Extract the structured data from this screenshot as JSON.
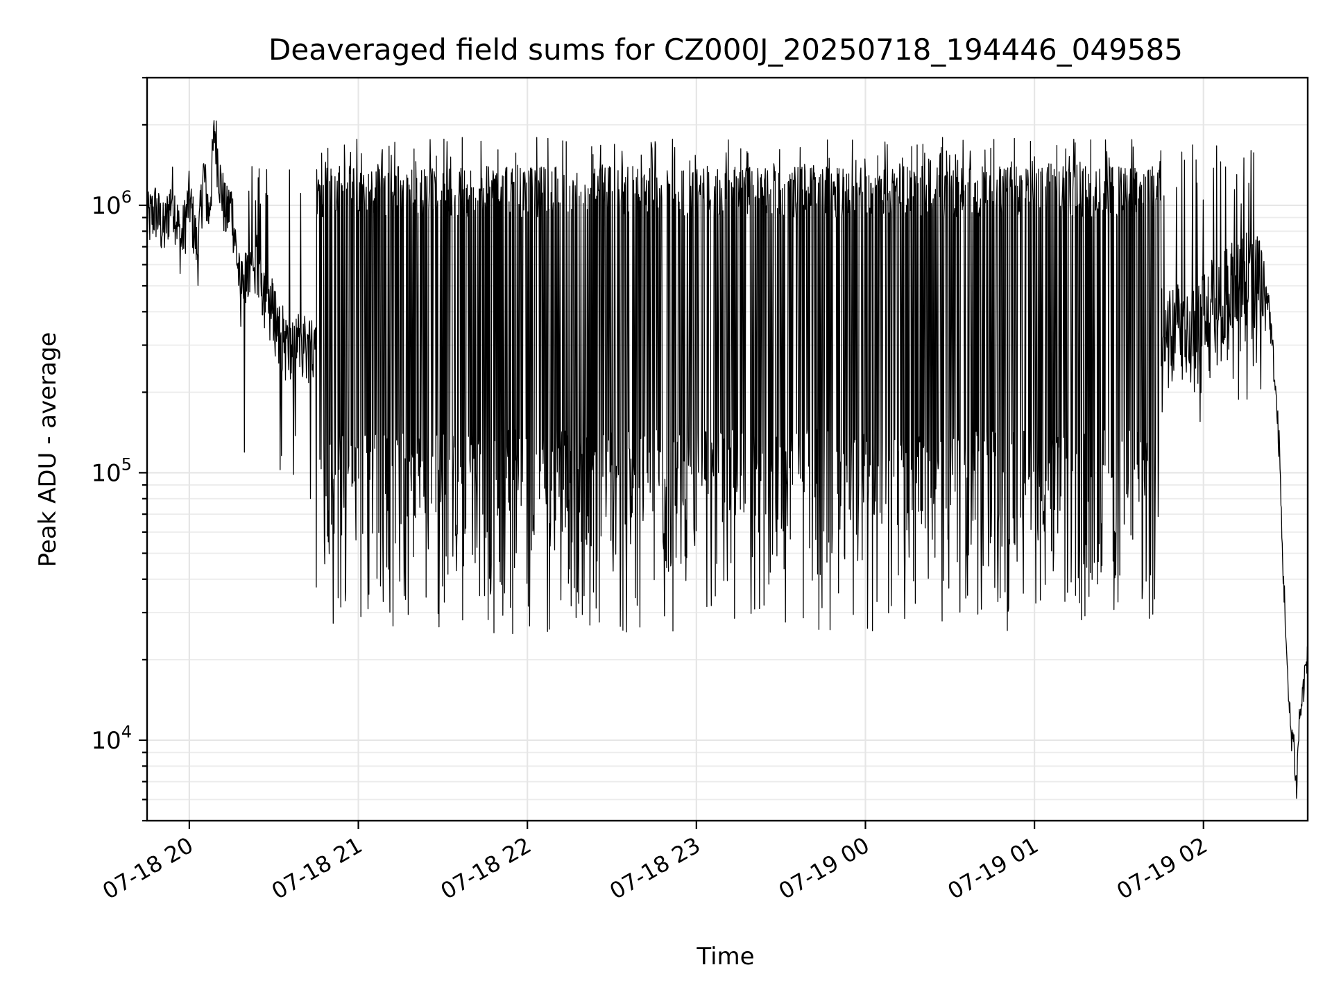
{
  "chart_data": {
    "type": "line",
    "title": "Deaveraged field sums for CZ000J_20250718_194446_049585",
    "xlabel": "Time",
    "ylabel": "Peak ADU - average",
    "yscale": "log",
    "ylim": [
      5000,
      3000000
    ],
    "xlim": [
      "2025-07-18 19:45",
      "2025-07-19 02:37"
    ],
    "grid": true,
    "x_ticks": [
      {
        "value": "2025-07-18 20:00",
        "label": "07-18 20"
      },
      {
        "value": "2025-07-18 21:00",
        "label": "07-18 21"
      },
      {
        "value": "2025-07-18 22:00",
        "label": "07-18 22"
      },
      {
        "value": "2025-07-18 23:00",
        "label": "07-18 23"
      },
      {
        "value": "2025-07-19 00:00",
        "label": "07-19 00"
      },
      {
        "value": "2025-07-19 01:00",
        "label": "07-19 01"
      },
      {
        "value": "2025-07-19 02:00",
        "label": "07-19 02"
      }
    ],
    "y_ticks": [
      {
        "value": 10000,
        "base": "10",
        "exp": "4"
      },
      {
        "value": 100000,
        "base": "10",
        "exp": "5"
      },
      {
        "value": 1000000,
        "base": "10",
        "exp": "6"
      }
    ],
    "series": [
      {
        "color": "#000000",
        "points": [
          [
            "2025-07-18 19:45",
            850000
          ],
          [
            "2025-07-18 19:48",
            950000
          ],
          [
            "2025-07-18 19:51",
            780000
          ],
          [
            "2025-07-18 19:54",
            1100000
          ],
          [
            "2025-07-18 19:57",
            700000
          ],
          [
            "2025-07-18 20:00",
            1050000
          ],
          [
            "2025-07-18 20:03",
            650000
          ],
          [
            "2025-07-18 20:05",
            1300000
          ],
          [
            "2025-07-18 20:07",
            900000
          ],
          [
            "2025-07-18 20:09",
            1900000
          ],
          [
            "2025-07-18 20:11",
            1200000
          ],
          [
            "2025-07-18 20:13",
            900000
          ],
          [
            "2025-07-18 20:15",
            1000000
          ],
          [
            "2025-07-18 20:18",
            480000
          ],
          [
            "2025-07-18 20:21",
            550000
          ],
          [
            "2025-07-18 20:24",
            600000
          ],
          [
            "2025-07-18 20:27",
            480000
          ],
          [
            "2025-07-18 20:30",
            400000
          ],
          [
            "2025-07-18 20:33",
            330000
          ],
          [
            "2025-07-18 20:36",
            280000
          ],
          [
            "2025-07-18 20:39",
            320000
          ],
          [
            "2025-07-18 20:42",
            300000
          ],
          [
            "2025-07-18 20:45",
            330000
          ],
          [
            "2025-07-18 20:48",
            300000
          ],
          [
            "2025-07-18 20:51",
            270000
          ],
          [
            "2025-07-18 20:54",
            240000
          ],
          [
            "2025-07-18 20:57",
            220000
          ],
          [
            "2025-07-18 21:00",
            200000
          ],
          [
            "2025-07-18 21:10",
            180000
          ],
          [
            "2025-07-18 21:20",
            170000
          ],
          [
            "2025-07-18 21:30",
            200000
          ],
          [
            "2025-07-18 21:40",
            230000
          ],
          [
            "2025-07-18 21:50",
            260000
          ],
          [
            "2025-07-18 22:00",
            300000
          ],
          [
            "2025-07-18 22:30",
            320000
          ],
          [
            "2025-07-18 23:00",
            330000
          ],
          [
            "2025-07-18 23:30",
            320000
          ],
          [
            "2025-07-19 00:00",
            300000
          ],
          [
            "2025-07-19 00:30",
            280000
          ],
          [
            "2025-07-19 01:00",
            290000
          ],
          [
            "2025-07-19 01:30",
            320000
          ],
          [
            "2025-07-19 01:45",
            360000
          ],
          [
            "2025-07-19 02:00",
            420000
          ],
          [
            "2025-07-19 02:05",
            480000
          ],
          [
            "2025-07-19 02:10",
            540000
          ],
          [
            "2025-07-19 02:15",
            580000
          ],
          [
            "2025-07-19 02:20",
            560000
          ],
          [
            "2025-07-19 02:23",
            450000
          ],
          [
            "2025-07-19 02:25",
            250000
          ],
          [
            "2025-07-19 02:27",
            120000
          ],
          [
            "2025-07-19 02:28",
            50000
          ],
          [
            "2025-07-19 02:29",
            30000
          ],
          [
            "2025-07-19 02:30",
            15000
          ],
          [
            "2025-07-19 02:31",
            11000
          ],
          [
            "2025-07-19 02:32",
            10000
          ],
          [
            "2025-07-19 02:33",
            6500
          ],
          [
            "2025-07-19 02:34",
            12000
          ],
          [
            "2025-07-19 02:35",
            14000
          ],
          [
            "2025-07-19 02:36",
            18000
          ],
          [
            "2025-07-19 02:37",
            20000
          ]
        ]
      }
    ]
  }
}
